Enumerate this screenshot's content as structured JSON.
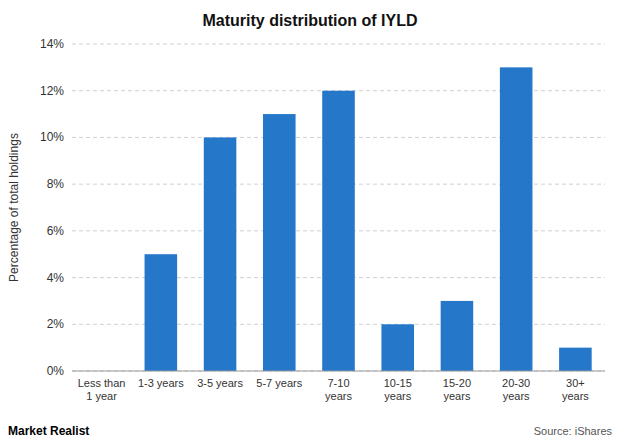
{
  "chart_data": {
    "type": "bar",
    "title": "Maturity distribution of IYLD",
    "categories": [
      "Less than\n1 year",
      "1-3 years",
      "3-5 years",
      "5-7 years",
      "7-10\nyears",
      "10-15\nyears",
      "15-20\nyears",
      "20-30\nyears",
      "30+\nyears"
    ],
    "values": [
      0.0,
      5.0,
      10.0,
      11.0,
      12.0,
      2.0,
      3.0,
      13.0,
      1.0
    ],
    "color": "#2477c9",
    "ylabel": "Percentage of total holdings",
    "ylim": [
      0,
      14
    ],
    "yticks": [
      {
        "value": 0,
        "label": "0%"
      },
      {
        "value": 2,
        "label": "2%"
      },
      {
        "value": 4,
        "label": "4%"
      },
      {
        "value": 6,
        "label": "6%"
      },
      {
        "value": 8,
        "label": "8%"
      },
      {
        "value": 10,
        "label": "10%"
      },
      {
        "value": 12,
        "label": "12%"
      },
      {
        "value": 14,
        "label": "14%"
      }
    ],
    "grid": true,
    "annotations": [
      "Market Realist",
      "Source: iShares"
    ]
  }
}
